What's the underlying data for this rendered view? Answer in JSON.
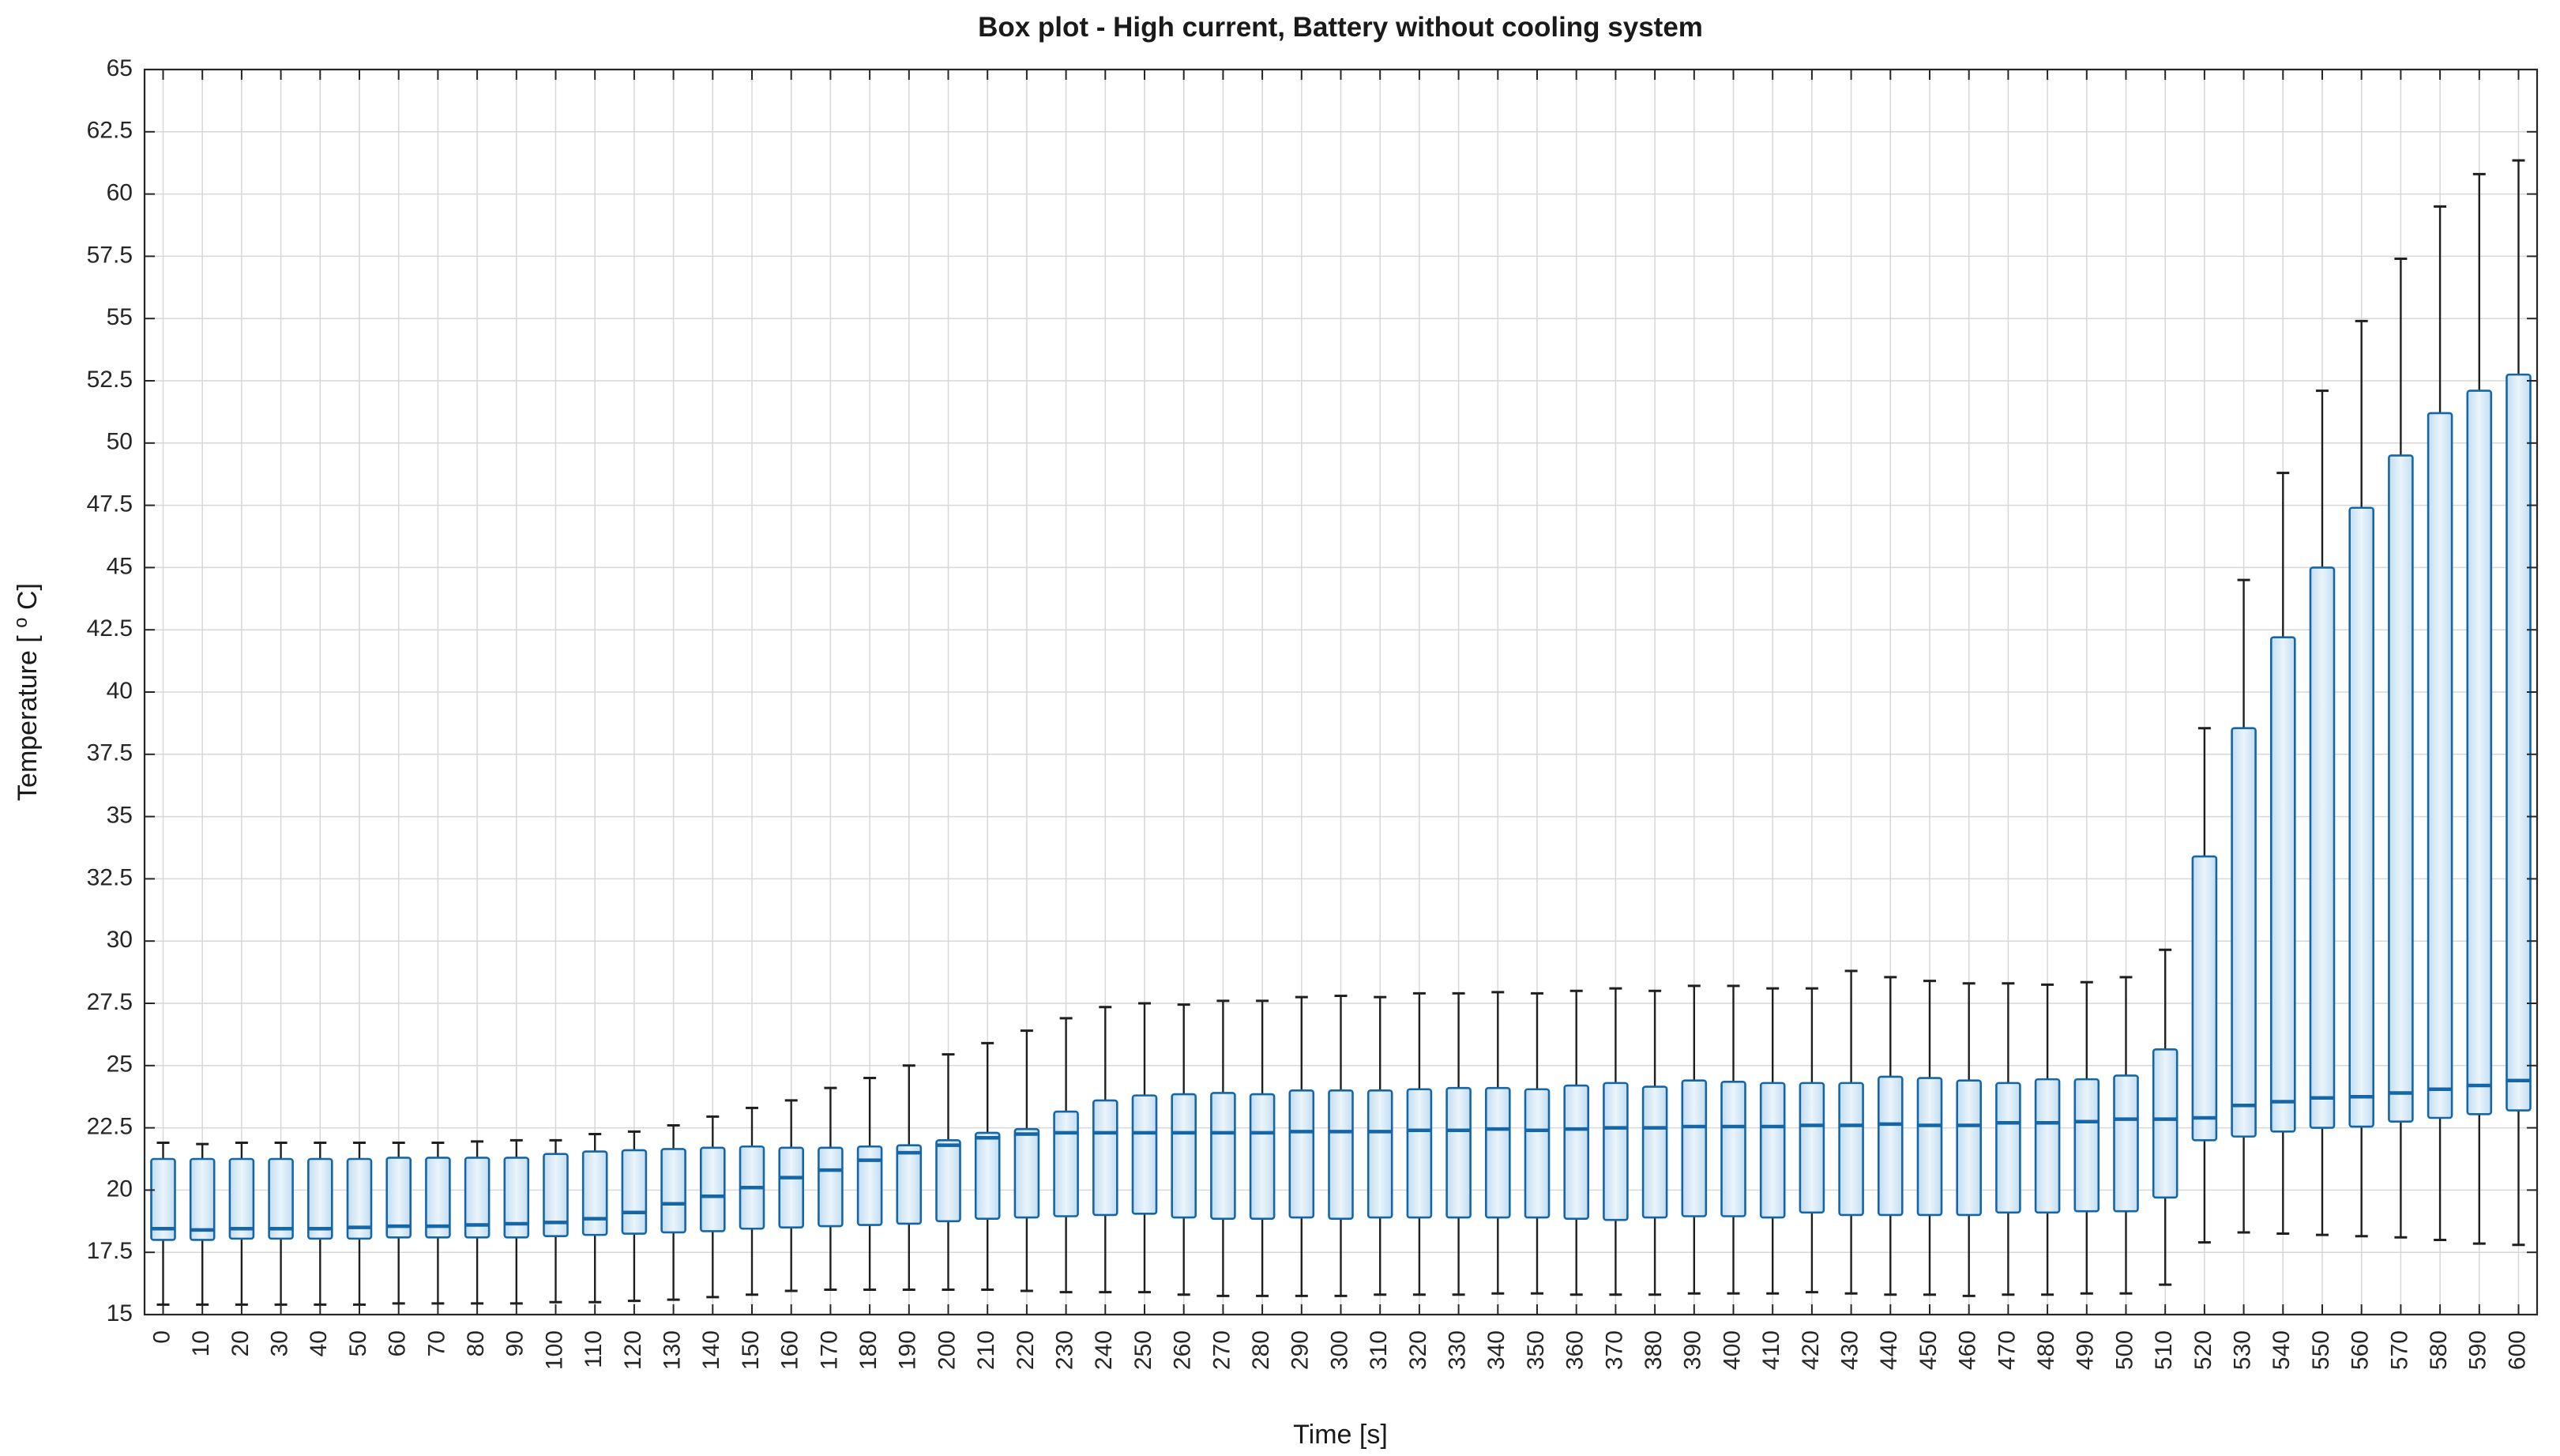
{
  "figure": {
    "background": "#ffffff"
  },
  "chart_data": {
    "type": "boxplot",
    "title": "Box plot - High current, Battery without cooling system",
    "xlabel": "Time [s]",
    "ylabel": "Temperature [ °C]",
    "ylabel_parts": {
      "prefix": "Temperature [ ",
      "sup": "o",
      "suffix": " C]"
    },
    "ylim": [
      15,
      65
    ],
    "grid": true,
    "legend": "none",
    "y_tick_labels": [
      "15",
      "17.5",
      "20",
      "22.5",
      "25",
      "27.5",
      "30",
      "32.5",
      "35",
      "37.5",
      "40",
      "42.5",
      "45",
      "47.5",
      "50",
      "52.5",
      "55",
      "57.5",
      "60",
      "62.5",
      "65"
    ],
    "y_ticks": [
      15,
      17.5,
      20,
      22.5,
      25,
      27.5,
      30,
      32.5,
      35,
      37.5,
      40,
      42.5,
      45,
      47.5,
      50,
      52.5,
      55,
      57.5,
      60,
      62.5,
      65
    ],
    "x_tick_labels": [
      "0",
      "10",
      "20",
      "30",
      "40",
      "50",
      "60",
      "70",
      "80",
      "90",
      "100",
      "110",
      "120",
      "130",
      "140",
      "150",
      "160",
      "170",
      "180",
      "190",
      "200",
      "210",
      "220",
      "230",
      "240",
      "250",
      "260",
      "270",
      "280",
      "290",
      "300",
      "310",
      "320",
      "330",
      "340",
      "350",
      "360",
      "370",
      "380",
      "390",
      "400",
      "410",
      "420",
      "430",
      "440",
      "450",
      "460",
      "470",
      "480",
      "490",
      "500",
      "510",
      "520",
      "530",
      "540",
      "550",
      "560",
      "570",
      "580",
      "590",
      "600"
    ],
    "box_columns": [
      "time_s",
      "whisker_low",
      "q1",
      "median",
      "q3",
      "whisker_high"
    ],
    "boxes": [
      [
        0,
        15.4,
        18.0,
        18.45,
        21.25,
        21.9
      ],
      [
        10,
        15.4,
        18.0,
        18.4,
        21.25,
        21.85
      ],
      [
        20,
        15.4,
        18.05,
        18.45,
        21.25,
        21.9
      ],
      [
        30,
        15.4,
        18.05,
        18.45,
        21.25,
        21.9
      ],
      [
        40,
        15.4,
        18.05,
        18.45,
        21.25,
        21.9
      ],
      [
        50,
        15.4,
        18.05,
        18.5,
        21.25,
        21.9
      ],
      [
        60,
        15.45,
        18.1,
        18.55,
        21.3,
        21.9
      ],
      [
        70,
        15.45,
        18.1,
        18.55,
        21.3,
        21.9
      ],
      [
        80,
        15.45,
        18.1,
        18.6,
        21.3,
        21.95
      ],
      [
        90,
        15.45,
        18.1,
        18.65,
        21.3,
        22.0
      ],
      [
        100,
        15.5,
        18.15,
        18.7,
        21.45,
        22.0
      ],
      [
        110,
        15.5,
        18.2,
        18.85,
        21.55,
        22.25
      ],
      [
        120,
        15.55,
        18.25,
        19.1,
        21.6,
        22.35
      ],
      [
        130,
        15.6,
        18.3,
        19.45,
        21.65,
        22.6
      ],
      [
        140,
        15.7,
        18.35,
        19.75,
        21.7,
        22.95
      ],
      [
        150,
        15.8,
        18.45,
        20.1,
        21.75,
        23.3
      ],
      [
        160,
        15.95,
        18.5,
        20.5,
        21.7,
        23.6
      ],
      [
        170,
        16.0,
        18.55,
        20.8,
        21.7,
        24.1
      ],
      [
        180,
        16.0,
        18.6,
        21.2,
        21.75,
        24.5
      ],
      [
        190,
        16.0,
        18.65,
        21.5,
        21.8,
        25.0
      ],
      [
        200,
        16.0,
        18.75,
        21.8,
        22.0,
        25.45
      ],
      [
        210,
        16.0,
        18.85,
        22.1,
        22.3,
        25.9
      ],
      [
        220,
        15.95,
        18.9,
        22.25,
        22.45,
        26.4
      ],
      [
        230,
        15.9,
        18.95,
        22.3,
        23.15,
        26.9
      ],
      [
        240,
        15.9,
        19.0,
        22.3,
        23.6,
        27.35
      ],
      [
        250,
        15.9,
        19.05,
        22.3,
        23.8,
        27.5
      ],
      [
        260,
        15.8,
        18.9,
        22.3,
        23.85,
        27.45
      ],
      [
        270,
        15.75,
        18.85,
        22.3,
        23.9,
        27.6
      ],
      [
        280,
        15.75,
        18.85,
        22.3,
        23.85,
        27.6
      ],
      [
        290,
        15.75,
        18.9,
        22.35,
        24.0,
        27.75
      ],
      [
        300,
        15.75,
        18.85,
        22.35,
        24.0,
        27.8
      ],
      [
        310,
        15.8,
        18.9,
        22.35,
        24.0,
        27.75
      ],
      [
        320,
        15.8,
        18.9,
        22.4,
        24.05,
        27.9
      ],
      [
        330,
        15.8,
        18.9,
        22.4,
        24.1,
        27.9
      ],
      [
        340,
        15.85,
        18.9,
        22.45,
        24.1,
        27.95
      ],
      [
        350,
        15.85,
        18.9,
        22.4,
        24.05,
        27.9
      ],
      [
        360,
        15.8,
        18.85,
        22.45,
        24.2,
        28.0
      ],
      [
        370,
        15.8,
        18.8,
        22.5,
        24.3,
        28.1
      ],
      [
        380,
        15.8,
        18.9,
        22.5,
        24.15,
        28.0
      ],
      [
        390,
        15.85,
        18.95,
        22.55,
        24.4,
        28.2
      ],
      [
        400,
        15.85,
        18.95,
        22.55,
        24.35,
        28.2
      ],
      [
        410,
        15.85,
        18.9,
        22.55,
        24.3,
        28.1
      ],
      [
        420,
        15.9,
        19.1,
        22.6,
        24.3,
        28.1
      ],
      [
        430,
        15.85,
        19.0,
        22.6,
        24.3,
        28.8
      ],
      [
        440,
        15.8,
        19.0,
        22.65,
        24.55,
        28.55
      ],
      [
        450,
        15.8,
        19.0,
        22.6,
        24.5,
        28.4
      ],
      [
        460,
        15.75,
        19.0,
        22.6,
        24.4,
        28.3
      ],
      [
        470,
        15.8,
        19.1,
        22.7,
        24.3,
        28.3
      ],
      [
        480,
        15.8,
        19.1,
        22.7,
        24.45,
        28.25
      ],
      [
        490,
        15.85,
        19.15,
        22.75,
        24.45,
        28.35
      ],
      [
        500,
        15.85,
        19.15,
        22.85,
        24.6,
        28.55
      ],
      [
        510,
        16.2,
        19.7,
        22.85,
        25.65,
        29.65
      ],
      [
        520,
        17.9,
        22.0,
        22.9,
        33.4,
        38.55
      ],
      [
        530,
        18.3,
        22.15,
        23.4,
        38.55,
        44.5
      ],
      [
        540,
        18.25,
        22.35,
        23.55,
        42.2,
        48.8
      ],
      [
        550,
        18.2,
        22.5,
        23.7,
        45.0,
        52.1
      ],
      [
        560,
        18.15,
        22.55,
        23.75,
        47.4,
        54.9
      ],
      [
        570,
        18.1,
        22.75,
        23.9,
        49.5,
        57.4
      ],
      [
        580,
        18.0,
        22.9,
        24.05,
        51.2,
        59.5
      ],
      [
        590,
        17.85,
        23.05,
        24.2,
        52.1,
        60.8
      ],
      [
        600,
        17.8,
        23.2,
        24.4,
        52.75,
        61.35
      ]
    ]
  },
  "colors": {
    "box_edge": "#1566a6",
    "box_fill_edge": "#c2ddf1",
    "box_fill_center": "#eaf4fb",
    "median": "#1566a6",
    "whisker": "#1f1f1f",
    "grid": "#d7d7d7",
    "axis": "#262626",
    "text": "#1a1a1a"
  }
}
